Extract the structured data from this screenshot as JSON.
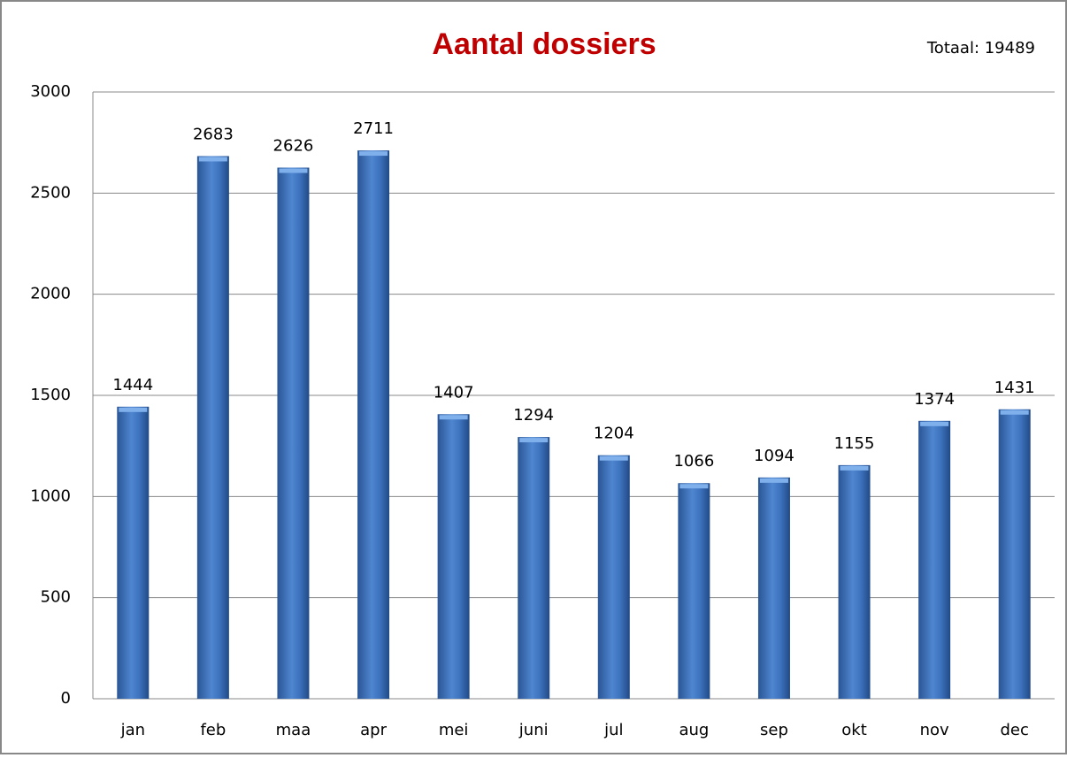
{
  "chart_data": {
    "type": "bar",
    "title": "Aantal dossiers",
    "annotation": "Totaal: 19489",
    "categories": [
      "jan",
      "feb",
      "maa",
      "apr",
      "mei",
      "juni",
      "jul",
      "aug",
      "sep",
      "okt",
      "nov",
      "dec"
    ],
    "values": [
      1444,
      2683,
      2626,
      2711,
      1407,
      1294,
      1204,
      1066,
      1094,
      1155,
      1374,
      1431
    ],
    "color": "#4a7fc8",
    "ylim": [
      0,
      3000
    ],
    "yticks": [
      0,
      500,
      1000,
      1500,
      2000,
      2500,
      3000
    ],
    "grid": true
  }
}
